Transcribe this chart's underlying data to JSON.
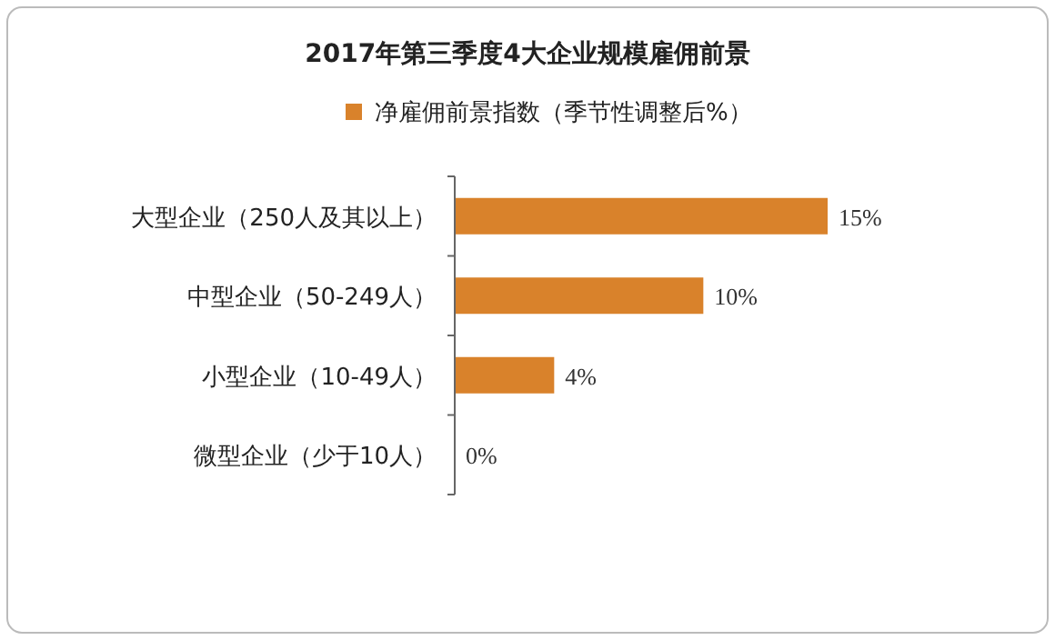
{
  "chart_data": {
    "type": "bar",
    "orientation": "horizontal",
    "title": "2017年第三季度4大企业规模雇佣前景",
    "categories": [
      "大型企业（250人及其以上）",
      "中型企业（50-249人）",
      "小型企业（10-49人）",
      "微型企业（少于10人）"
    ],
    "series": [
      {
        "name": "净雇佣前景指数（季节性调整后%）",
        "color": "#d9822b",
        "values": [
          15,
          10,
          4,
          0
        ],
        "value_labels": [
          "15%",
          "10%",
          "4%",
          "0%"
        ]
      }
    ],
    "legend": "top",
    "grid": false
  }
}
